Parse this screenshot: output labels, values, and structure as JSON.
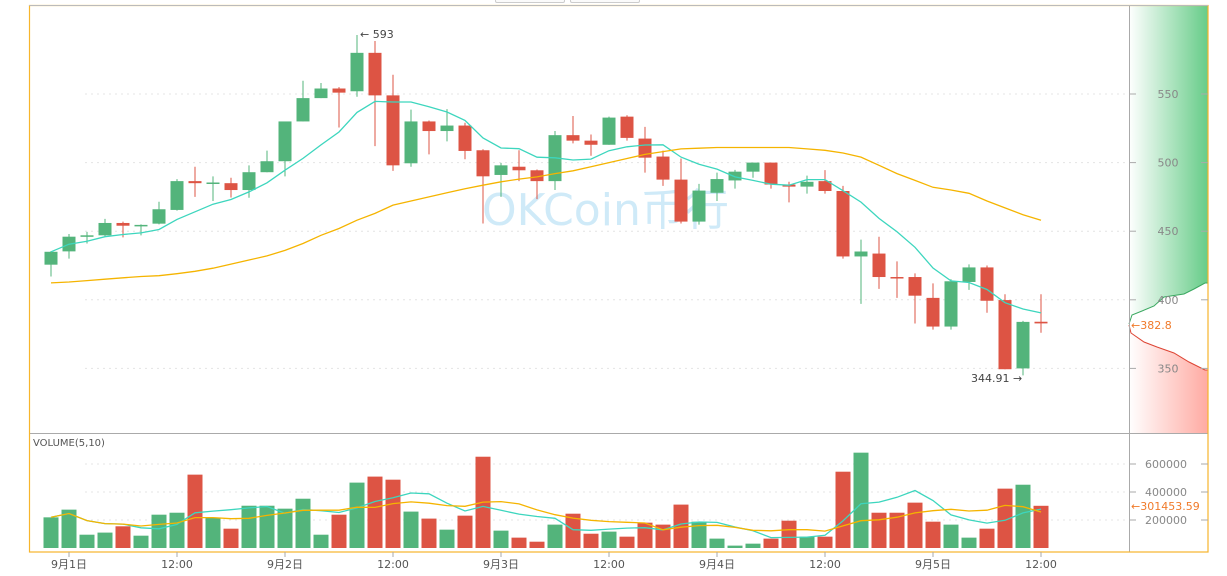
{
  "chart_data": {
    "type": "candlestick",
    "colors": {
      "up": "#53b47b",
      "down": "#dd5444",
      "ma_fast": "#3dd6be",
      "ma_slow": "#f5b400",
      "border": "#f7b52c",
      "current": "#f07a2a",
      "watermark": "#bfe3f6"
    },
    "watermark": "OKCoin币行",
    "price_axis": {
      "ticks": [
        "550",
        "500",
        "450",
        "400",
        "350"
      ],
      "ylim": [
        315,
        600
      ]
    },
    "volume_axis": {
      "title": "VOLUME(5,10)",
      "ticks": [
        "600000",
        "400000",
        "200000"
      ],
      "ylim": [
        0,
        700000
      ]
    },
    "x_ticks": [
      {
        "label": "9月1日",
        "index": 1
      },
      {
        "label": "12:00",
        "index": 7
      },
      {
        "label": "9月2日",
        "index": 13
      },
      {
        "label": "12:00",
        "index": 19
      },
      {
        "label": "9月3日",
        "index": 25
      },
      {
        "label": "12:00",
        "index": 31
      },
      {
        "label": "9月4日",
        "index": 37
      },
      {
        "label": "12:00",
        "index": 43
      },
      {
        "label": "9月5日",
        "index": 49
      },
      {
        "label": "12:00",
        "index": 55
      }
    ],
    "annotations": {
      "high": "← 593",
      "low": "344.91 →",
      "current_price": "382.8",
      "current_volume": "301453.59"
    },
    "ohlc": [
      [
        425.6,
        435.5,
        417,
        435
      ],
      [
        435.3,
        448,
        430,
        446
      ],
      [
        446.5,
        449.5,
        441,
        447
      ],
      [
        447,
        459,
        446,
        456
      ],
      [
        456,
        457,
        445.5,
        454
      ],
      [
        454,
        455,
        447,
        454.6
      ],
      [
        455.5,
        471.5,
        455,
        466
      ],
      [
        465.5,
        488,
        465,
        486.5
      ],
      [
        486.5,
        497,
        475,
        485
      ],
      [
        485,
        490,
        472,
        485.5
      ],
      [
        485,
        489,
        474.6,
        480
      ],
      [
        480,
        498,
        474.4,
        493
      ],
      [
        493,
        508.7,
        493,
        501
      ],
      [
        501,
        530,
        490,
        530
      ],
      [
        530,
        559.7,
        530,
        547
      ],
      [
        547,
        558,
        547,
        554
      ],
      [
        554,
        555,
        525.6,
        551
      ],
      [
        552,
        593,
        548,
        580
      ],
      [
        580,
        588.6,
        512,
        549
      ],
      [
        549,
        564,
        494,
        498
      ],
      [
        499.5,
        538.6,
        497,
        530
      ],
      [
        530,
        530.7,
        506,
        523
      ],
      [
        523,
        539,
        515.5,
        527
      ],
      [
        527,
        529,
        502.4,
        508.5
      ],
      [
        509,
        509.7,
        455.6,
        490
      ],
      [
        491,
        499.8,
        475,
        498
      ],
      [
        497,
        509,
        486.5,
        494.4
      ],
      [
        494.4,
        495,
        473.4,
        486.5
      ],
      [
        486.5,
        523,
        480,
        520
      ],
      [
        520,
        534,
        514,
        516
      ],
      [
        516,
        520.5,
        505,
        513
      ],
      [
        513,
        533.5,
        513,
        532.8
      ],
      [
        533.5,
        534.5,
        516,
        518
      ],
      [
        517.5,
        526,
        492.7,
        503.6
      ],
      [
        504.4,
        508.7,
        483,
        487.6
      ],
      [
        487.6,
        503,
        455.6,
        457
      ],
      [
        457,
        484.5,
        454.8,
        479.6
      ],
      [
        478,
        492.7,
        472,
        488
      ],
      [
        487,
        494.7,
        481,
        493.4
      ],
      [
        493.4,
        500,
        489,
        500
      ],
      [
        500,
        500,
        481,
        484
      ],
      [
        484,
        486,
        471,
        482.5
      ],
      [
        482.5,
        490.5,
        477.4,
        486
      ],
      [
        486.5,
        494.5,
        477.4,
        479.3
      ],
      [
        479.3,
        483,
        430,
        431.6
      ],
      [
        431.6,
        443.9,
        397,
        435.2
      ],
      [
        433.7,
        446,
        408,
        416.6
      ],
      [
        416.6,
        428,
        401.4,
        416
      ],
      [
        416.6,
        419.3,
        382.7,
        403
      ],
      [
        401.4,
        412,
        378.3,
        380.5
      ],
      [
        380.5,
        415,
        378.3,
        413.5
      ],
      [
        413,
        425.8,
        407.2,
        423.6
      ],
      [
        423.6,
        425,
        390.6,
        399.3
      ],
      [
        399.8,
        404,
        349.4,
        349.4
      ],
      [
        350,
        384.6,
        344.91,
        383.9
      ],
      [
        384,
        404,
        376,
        382.8
      ]
    ],
    "ma_slow": [
      412.3,
      413,
      414,
      415,
      416,
      417,
      417.6,
      419,
      420.8,
      423,
      426,
      429,
      432,
      436,
      441,
      447,
      452,
      458,
      463,
      469,
      472,
      475,
      478,
      481,
      483.5,
      486,
      488,
      489.6,
      492,
      494,
      497,
      500,
      503,
      506,
      508,
      510,
      510.5,
      511,
      511,
      511,
      511,
      511,
      510,
      509,
      507,
      504,
      498,
      492,
      487,
      482,
      480,
      477.6,
      472,
      467,
      462,
      458
    ],
    "volume": [
      219000,
      274000,
      95000,
      110000,
      155000,
      88000,
      238000,
      252000,
      524000,
      217000,
      138000,
      302000,
      302000,
      281000,
      352000,
      95000,
      238000,
      467000,
      510000,
      488000,
      260000,
      210000,
      131000,
      231000,
      652000,
      124000,
      74000,
      45000,
      167000,
      245000,
      102000,
      117000,
      81000,
      181000,
      167000,
      310000,
      188000,
      67000,
      17000,
      31000,
      67000,
      195000,
      81000,
      81000,
      545000,
      681000,
      252000,
      252000,
      324000,
      188000,
      167000,
      74000,
      138000,
      424000,
      452000,
      301453.59
    ]
  }
}
